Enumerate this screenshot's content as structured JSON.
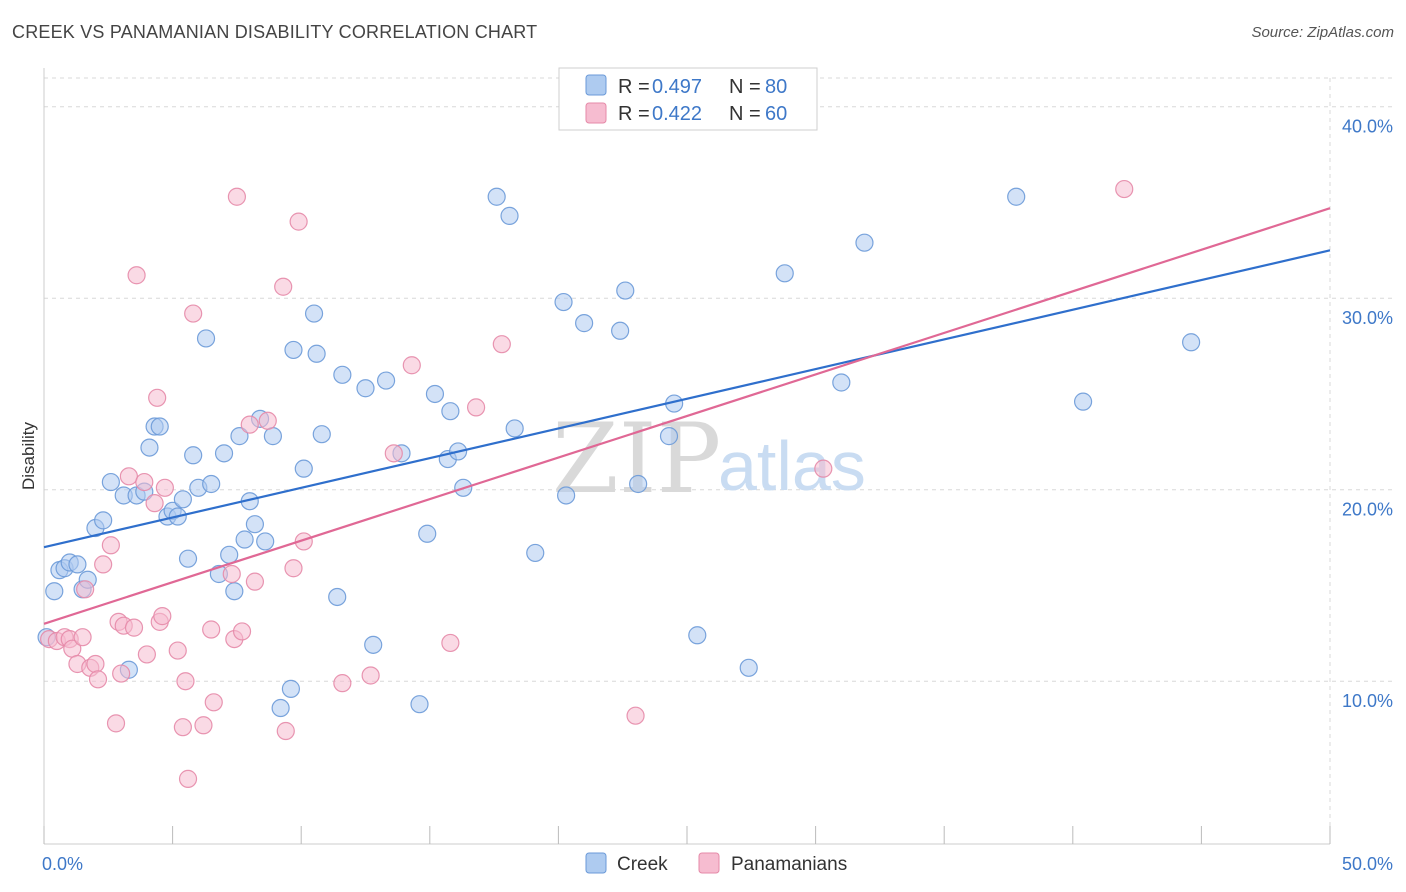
{
  "title": "CREEK VS PANAMANIAN DISABILITY CORRELATION CHART",
  "source": "Source: ZipAtlas.com",
  "watermark": {
    "zip": "ZIP",
    "atlas": "atlas"
  },
  "colors": {
    "creek_fill": "#aecbf0",
    "creek_stroke": "#6b9ad8",
    "creek_line": "#2f6fcc",
    "pan_fill": "#f6bcd0",
    "pan_stroke": "#e58aa8",
    "pan_line": "#e06895",
    "tick_text": "#3e78c8",
    "grid": "#d8d8d8"
  },
  "legend": {
    "rows": [
      {
        "r_label": "R =",
        "r_value": "0.497",
        "n_label": "N =",
        "n_value": "80"
      },
      {
        "r_label": "R =",
        "r_value": "0.422",
        "n_label": "N =",
        "n_value": "60"
      }
    ]
  },
  "chart_data": {
    "type": "scatter",
    "title": "CREEK VS PANAMANIAN DISABILITY CORRELATION CHART",
    "xlabel": "",
    "ylabel": "Disability",
    "xlim": [
      0,
      50
    ],
    "ylim": [
      1.5,
      41.5
    ],
    "x_tick_labels": [
      "0.0%",
      "50.0%"
    ],
    "y_ticks": [
      10,
      20,
      30,
      40
    ],
    "y_tick_labels": [
      "10.0%",
      "20.0%",
      "30.0%",
      "40.0%"
    ],
    "grid": true,
    "legend_position": "top-center",
    "series": [
      {
        "name": "Creek",
        "trend": {
          "x": [
            0,
            50
          ],
          "y": [
            17.0,
            32.5
          ]
        },
        "points": [
          [
            0.1,
            12.3
          ],
          [
            0.4,
            14.7
          ],
          [
            0.6,
            15.8
          ],
          [
            0.8,
            15.9
          ],
          [
            1.0,
            16.2
          ],
          [
            1.3,
            16.1
          ],
          [
            1.5,
            14.8
          ],
          [
            1.7,
            15.3
          ],
          [
            2.0,
            18.0
          ],
          [
            2.3,
            18.4
          ],
          [
            2.6,
            20.4
          ],
          [
            3.1,
            19.7
          ],
          [
            3.3,
            10.6
          ],
          [
            3.6,
            19.7
          ],
          [
            3.9,
            19.9
          ],
          [
            4.1,
            22.2
          ],
          [
            4.3,
            23.3
          ],
          [
            4.5,
            23.3
          ],
          [
            4.8,
            18.6
          ],
          [
            5.0,
            18.9
          ],
          [
            5.2,
            18.6
          ],
          [
            5.4,
            19.5
          ],
          [
            5.6,
            16.4
          ],
          [
            5.8,
            21.8
          ],
          [
            6.0,
            20.1
          ],
          [
            6.3,
            27.9
          ],
          [
            6.5,
            20.3
          ],
          [
            6.8,
            15.6
          ],
          [
            7.0,
            21.9
          ],
          [
            7.2,
            16.6
          ],
          [
            7.4,
            14.7
          ],
          [
            7.6,
            22.8
          ],
          [
            7.8,
            17.4
          ],
          [
            8.0,
            19.4
          ],
          [
            8.2,
            18.2
          ],
          [
            8.4,
            23.7
          ],
          [
            8.6,
            17.3
          ],
          [
            8.9,
            22.8
          ],
          [
            9.2,
            8.6
          ],
          [
            9.6,
            9.6
          ],
          [
            9.7,
            27.3
          ],
          [
            10.1,
            21.1
          ],
          [
            10.5,
            29.2
          ],
          [
            10.6,
            27.1
          ],
          [
            10.8,
            22.9
          ],
          [
            11.4,
            14.4
          ],
          [
            11.6,
            26.0
          ],
          [
            12.5,
            25.3
          ],
          [
            12.8,
            11.9
          ],
          [
            13.3,
            25.7
          ],
          [
            13.9,
            21.9
          ],
          [
            14.6,
            8.8
          ],
          [
            14.9,
            17.7
          ],
          [
            15.2,
            25.0
          ],
          [
            15.7,
            21.6
          ],
          [
            15.8,
            24.1
          ],
          [
            16.1,
            22.0
          ],
          [
            16.3,
            20.1
          ],
          [
            17.6,
            35.3
          ],
          [
            18.1,
            34.3
          ],
          [
            18.3,
            23.2
          ],
          [
            19.1,
            16.7
          ],
          [
            20.2,
            29.8
          ],
          [
            20.3,
            19.7
          ],
          [
            21.0,
            28.7
          ],
          [
            22.4,
            28.3
          ],
          [
            22.6,
            30.4
          ],
          [
            23.1,
            20.3
          ],
          [
            24.3,
            22.8
          ],
          [
            24.5,
            24.5
          ],
          [
            25.4,
            12.4
          ],
          [
            27.4,
            10.7
          ],
          [
            28.8,
            31.3
          ],
          [
            31.0,
            25.6
          ],
          [
            31.9,
            32.9
          ],
          [
            37.8,
            35.3
          ],
          [
            40.4,
            24.6
          ],
          [
            44.6,
            27.7
          ]
        ]
      },
      {
        "name": "Panamanians",
        "trend": {
          "x": [
            0,
            50
          ],
          "y": [
            13.0,
            34.7
          ]
        },
        "points": [
          [
            0.2,
            12.2
          ],
          [
            0.5,
            12.1
          ],
          [
            0.8,
            12.3
          ],
          [
            1.0,
            12.2
          ],
          [
            1.1,
            11.7
          ],
          [
            1.3,
            10.9
          ],
          [
            1.5,
            12.3
          ],
          [
            1.6,
            14.8
          ],
          [
            1.8,
            10.7
          ],
          [
            2.0,
            10.9
          ],
          [
            2.1,
            10.1
          ],
          [
            2.3,
            16.1
          ],
          [
            2.6,
            17.1
          ],
          [
            2.8,
            7.8
          ],
          [
            2.9,
            13.1
          ],
          [
            3.0,
            10.4
          ],
          [
            3.1,
            12.9
          ],
          [
            3.3,
            20.7
          ],
          [
            3.5,
            12.8
          ],
          [
            3.6,
            31.2
          ],
          [
            3.9,
            20.4
          ],
          [
            4.0,
            11.4
          ],
          [
            4.3,
            19.3
          ],
          [
            4.4,
            24.8
          ],
          [
            4.5,
            13.1
          ],
          [
            4.6,
            13.4
          ],
          [
            4.7,
            20.1
          ],
          [
            5.2,
            11.6
          ],
          [
            5.4,
            7.6
          ],
          [
            5.5,
            10.0
          ],
          [
            5.6,
            4.9
          ],
          [
            5.8,
            29.2
          ],
          [
            6.2,
            7.7
          ],
          [
            6.5,
            12.7
          ],
          [
            6.6,
            8.9
          ],
          [
            7.3,
            15.6
          ],
          [
            7.4,
            12.2
          ],
          [
            7.5,
            35.3
          ],
          [
            7.7,
            12.6
          ],
          [
            8.0,
            23.4
          ],
          [
            8.2,
            15.2
          ],
          [
            8.7,
            23.6
          ],
          [
            9.3,
            30.6
          ],
          [
            9.4,
            7.4
          ],
          [
            9.7,
            15.9
          ],
          [
            9.9,
            34.0
          ],
          [
            10.1,
            17.3
          ],
          [
            11.6,
            9.9
          ],
          [
            12.7,
            10.3
          ],
          [
            13.6,
            21.9
          ],
          [
            14.3,
            26.5
          ],
          [
            15.8,
            12.0
          ],
          [
            16.8,
            24.3
          ],
          [
            17.8,
            27.6
          ],
          [
            23.0,
            8.2
          ],
          [
            30.3,
            21.1
          ],
          [
            42.0,
            35.7
          ]
        ]
      }
    ]
  },
  "bottom_legend": {
    "items": [
      "Creek",
      "Panamanians"
    ]
  }
}
